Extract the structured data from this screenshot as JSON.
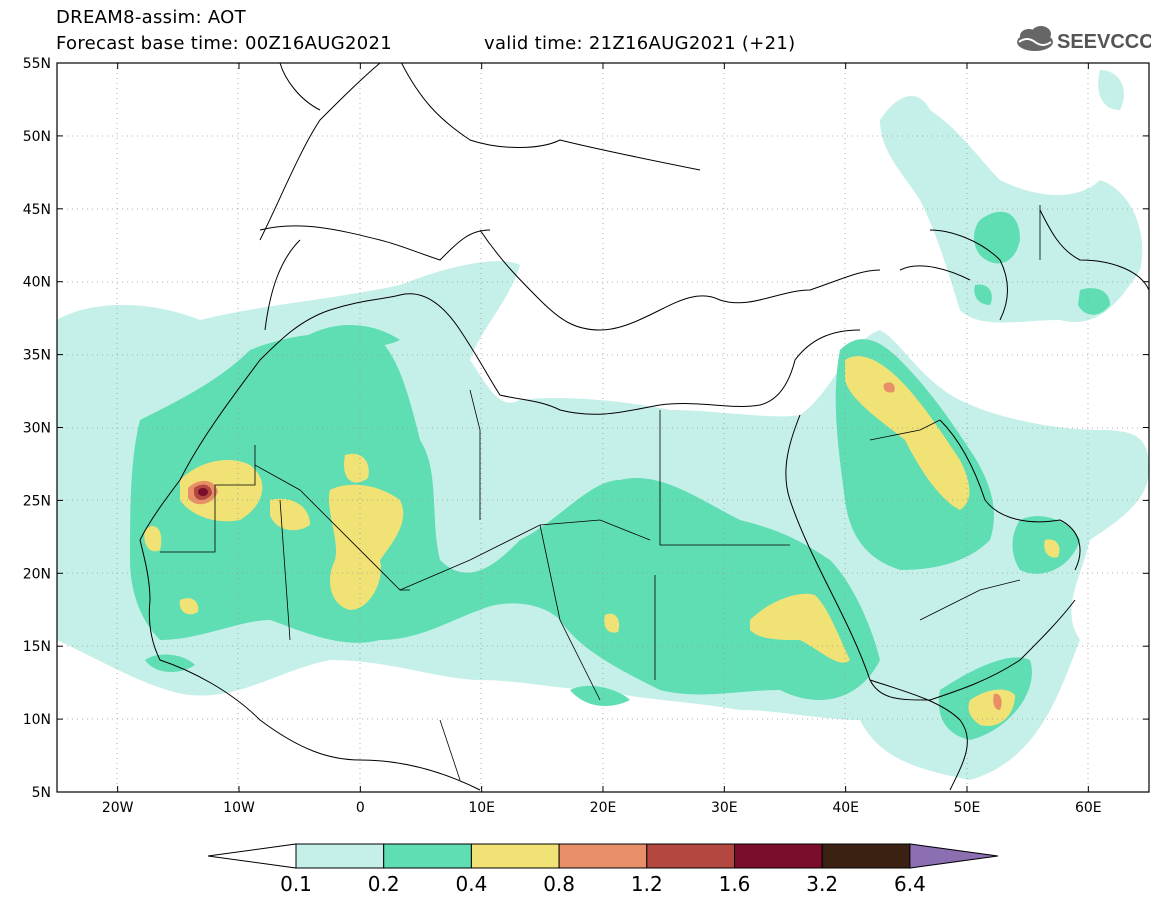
{
  "header": {
    "title": "DREAM8-assim: AOT",
    "base_time": "Forecast base time: 00Z16AUG2021",
    "valid_time": "valid time: 21Z16AUG2021 (+21)"
  },
  "logo": {
    "text": "SEEVCCC",
    "icon": "cloud-icon"
  },
  "axes": {
    "lat_labels": [
      "55N",
      "50N",
      "45N",
      "40N",
      "35N",
      "30N",
      "25N",
      "20N",
      "15N",
      "10N",
      "5N"
    ],
    "lon_labels": [
      "20W",
      "10W",
      "0",
      "10E",
      "20E",
      "30E",
      "40E",
      "50E",
      "60E"
    ],
    "lat_range": [
      5,
      55
    ],
    "lon_range": [
      -25,
      65
    ]
  },
  "legend": {
    "levels": [
      "0.1",
      "0.2",
      "0.4",
      "0.8",
      "1.2",
      "1.6",
      "3.2",
      "6.4"
    ],
    "colors": [
      "#c5f0e9",
      "#5fddb3",
      "#f1e276",
      "#e88f67",
      "#b4473f",
      "#7a0c2c",
      "#3b2112",
      "#8c6eb3"
    ],
    "under_color": "#ffffff"
  },
  "colors": {
    "aot_0_1": "#c5f0e9",
    "aot_0_2": "#5fddb3",
    "aot_0_4": "#f1e276",
    "aot_0_8": "#e88f67",
    "aot_1_2": "#b4473f",
    "aot_1_6": "#7a0c2c"
  }
}
